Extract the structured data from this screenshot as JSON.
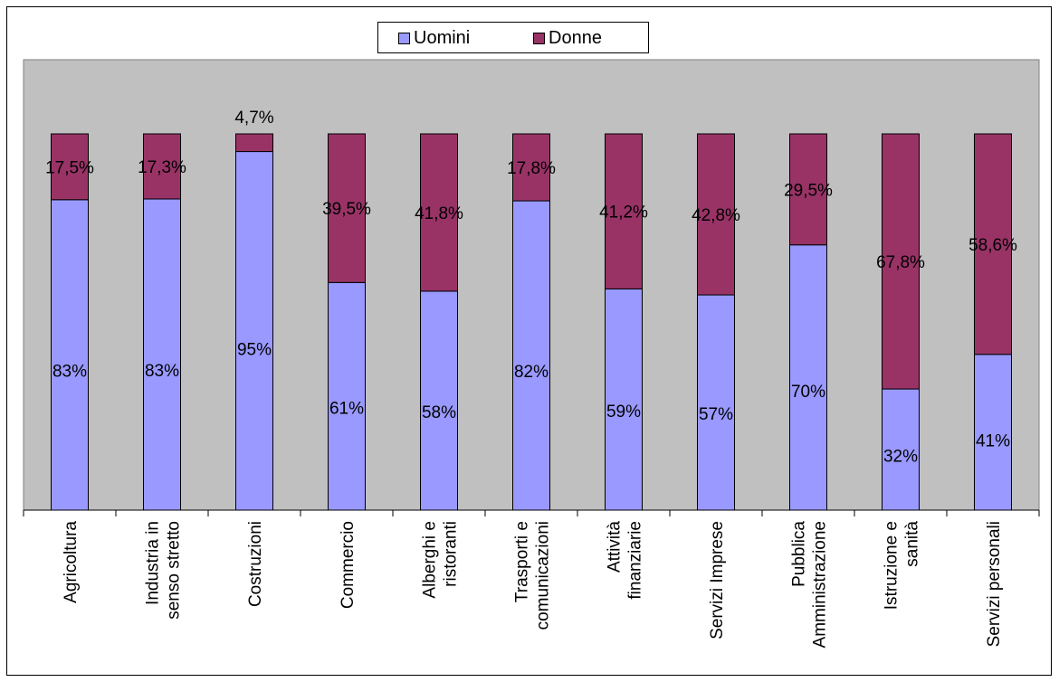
{
  "chart_data": {
    "type": "bar",
    "stacked": true,
    "percent_stacked": true,
    "categories": [
      "Agricoltura",
      "Industria in senso stretto",
      "Costruzioni",
      "Commercio",
      "Alberghi e ristoranti",
      "Trasporti e comunicazioni",
      "Attività finanziarie",
      "Servizi Imprese",
      "Pubblica Amministrazione",
      "Istruzione e sanità",
      "Servizi personali"
    ],
    "category_lines": [
      [
        "Agricoltura"
      ],
      [
        "Industria in",
        "senso stretto"
      ],
      [
        "Costruzioni"
      ],
      [
        "Commercio"
      ],
      [
        "Alberghi e",
        "ristoranti"
      ],
      [
        "Trasporti e",
        "comunicazioni"
      ],
      [
        "Attività",
        "finanziarie"
      ],
      [
        "Servizi Imprese"
      ],
      [
        "Pubblica",
        "Amministrazione"
      ],
      [
        "Istruzione e",
        "sanità"
      ],
      [
        "Servizi personali"
      ]
    ],
    "series": [
      {
        "name": "Uomini",
        "color": "#9999ff",
        "values": [
          82.5,
          82.7,
          95.3,
          60.5,
          58.2,
          82.2,
          58.8,
          57.2,
          70.5,
          32.2,
          41.4
        ],
        "labels": [
          "83%",
          "83%",
          "95%",
          "61%",
          "58%",
          "82%",
          "59%",
          "57%",
          "70%",
          "32%",
          "41%"
        ]
      },
      {
        "name": "Donne",
        "color": "#993366",
        "values": [
          17.5,
          17.3,
          4.7,
          39.5,
          41.8,
          17.8,
          41.2,
          42.8,
          29.5,
          67.8,
          58.6
        ],
        "labels": [
          "17,5%",
          "17,3%",
          "4,7%",
          "39,5%",
          "41,8%",
          "17,8%",
          "41,2%",
          "42,8%",
          "29,5%",
          "67,8%",
          "58,6%"
        ]
      }
    ],
    "ylim": [
      0,
      100
    ],
    "grid": false,
    "legend_position": "top",
    "plot_background": "#c0c0c0"
  }
}
